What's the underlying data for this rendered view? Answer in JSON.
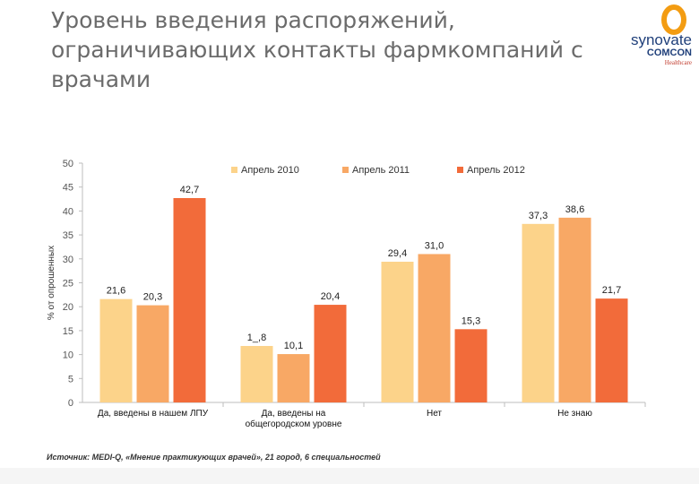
{
  "header": {
    "title_line1": "Уровень введения распоряжений,",
    "title_line2": "ограничивающих контакты фармкомпаний с",
    "title_line3": "врачами"
  },
  "logo": {
    "brand": "synovate",
    "sub": "COMCON",
    "division": "Healthcare",
    "ring_color": "#f39c12"
  },
  "source": "Источник: MEDI-Q, «Мнение практикующих врачей», 21 город, 6 специальностей",
  "chart_data": {
    "type": "bar",
    "title": "",
    "xlabel": "",
    "ylabel": "% от опрошенных",
    "ylim": [
      0,
      50
    ],
    "yticks": [
      0,
      5,
      10,
      15,
      20,
      25,
      30,
      35,
      40,
      45,
      50
    ],
    "legend_position": "top",
    "categories": [
      [
        "Да, введены в нашем ЛПУ"
      ],
      [
        "Да, введены на",
        "общегородском уровне"
      ],
      [
        "Нет"
      ],
      [
        "Не знаю"
      ]
    ],
    "series": [
      {
        "name": "Апрель 2010",
        "color": "#fcd38a",
        "values": [
          21.6,
          11.8,
          29.4,
          37.3
        ],
        "labels": [
          "21,6",
          "1_,8",
          "29,4",
          "37,3"
        ]
      },
      {
        "name": "Апрель 2011",
        "color": "#f8a865",
        "values": [
          20.3,
          10.1,
          31.0,
          38.6
        ],
        "labels": [
          "20,3",
          "10,1",
          "31,0",
          "38,6"
        ]
      },
      {
        "name": "Апрель 2012",
        "color": "#f26b3a",
        "values": [
          42.7,
          20.4,
          15.3,
          21.7
        ],
        "labels": [
          "42,7",
          "20,4",
          "15,3",
          "21,7"
        ]
      }
    ]
  }
}
